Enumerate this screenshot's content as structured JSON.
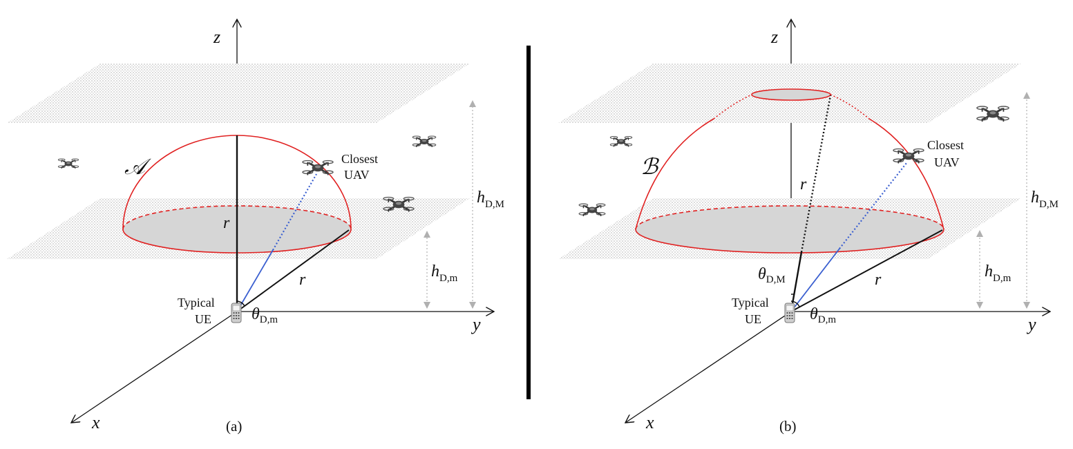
{
  "figure": {
    "panels": [
      {
        "id": "a",
        "caption": "(a)",
        "region_label": "𝒜",
        "z_label": "z",
        "x_label": "x",
        "y_label": "y",
        "ue_label_line1": "Typical",
        "ue_label_line2": "UE",
        "uav_label_line1": "Closest",
        "uav_label_line2": "UAV",
        "r_label": "r",
        "theta_m": {
          "symbol": "θ",
          "sub": "D,m"
        },
        "h_max": {
          "symbol": "h",
          "sub": "D,M"
        },
        "h_min": {
          "symbol": "h",
          "sub": "D,m"
        }
      },
      {
        "id": "b",
        "caption": "(b)",
        "region_label": "ℬ",
        "z_label": "z",
        "x_label": "x",
        "y_label": "y",
        "ue_label_line1": "Typical",
        "ue_label_line2": "UE",
        "uav_label_line1": "Closest",
        "uav_label_line2": "UAV",
        "r_label": "r",
        "theta_m": {
          "symbol": "θ",
          "sub": "D,m"
        },
        "theta_M": {
          "symbol": "θ",
          "sub": "D,M"
        },
        "h_max": {
          "symbol": "h",
          "sub": "D,M"
        },
        "h_min": {
          "symbol": "h",
          "sub": "D,m"
        }
      }
    ],
    "colors": {
      "sphere": "#e02020",
      "link": "#3a5fd0",
      "disk_fill": "#d6d6d6",
      "plane_hatch": "#c4c4c4",
      "height_marker": "#b0b0b0",
      "divider": "#000000"
    }
  }
}
